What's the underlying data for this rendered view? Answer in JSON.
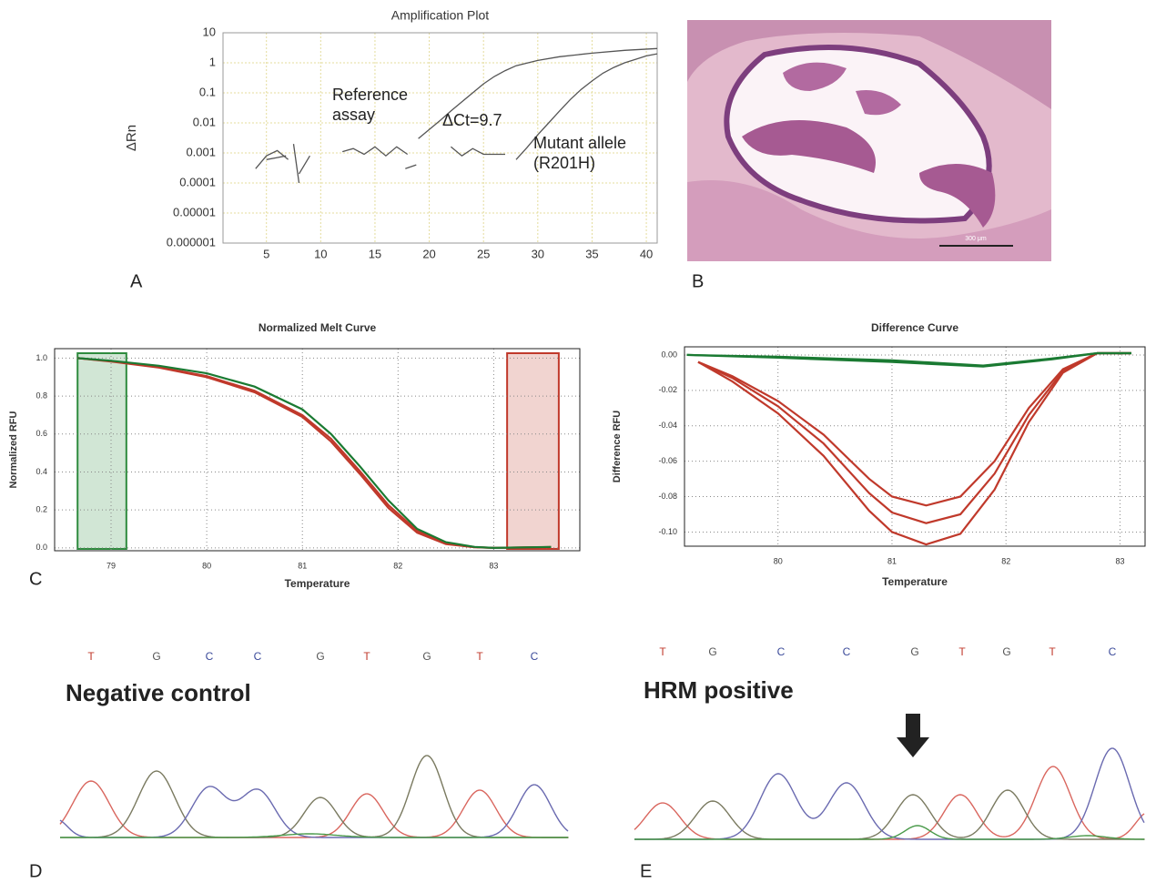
{
  "chart_data": [
    {
      "type": "line",
      "title": "Amplification Plot",
      "ylabel": "ΔRn",
      "log_y": true,
      "grid": true,
      "xlim": [
        1,
        41
      ],
      "xticks": [
        5,
        10,
        15,
        20,
        25,
        30,
        35,
        40
      ],
      "ylim": [
        1e-06,
        10
      ],
      "yticks": [
        10,
        1,
        0.1,
        0.01,
        0.001,
        0.0001,
        1e-05,
        1e-06
      ],
      "annotations": [
        "Reference assay",
        "ΔCt=9.7",
        "Mutant allele (R201H)"
      ],
      "series": [
        {
          "color": "#555555",
          "x": [
            4,
            5,
            6,
            7,
            7.3,
            8,
            9,
            9.5,
            12,
            13,
            14,
            15,
            16,
            17,
            18,
            18.5,
            19,
            20,
            21,
            22,
            23,
            24,
            25,
            26,
            27,
            28,
            30,
            32,
            35,
            38,
            41
          ],
          "values": [
            0.0003,
            0.0008,
            0.0012,
            0.0006,
            null,
            0.0002,
            0.0008,
            null,
            0.0011,
            0.0014,
            0.0009,
            0.0016,
            0.0008,
            0.0016,
            0.0009,
            null,
            0.003,
            0.006,
            0.012,
            0.025,
            0.05,
            0.1,
            0.2,
            0.35,
            0.55,
            0.8,
            1.2,
            1.6,
            2.1,
            2.6,
            3
          ]
        },
        {
          "color": "#555555",
          "x": [
            5,
            6,
            6.8,
            7,
            7.5,
            8,
            9,
            17.8,
            18.8,
            19,
            22,
            23,
            24,
            25,
            26,
            27,
            27.5,
            28,
            29,
            30,
            31,
            32,
            33,
            34,
            35,
            36,
            37,
            38,
            39,
            40,
            41
          ],
          "values": [
            0.0006,
            0.0007,
            0.0008,
            null,
            0.002,
            0.0001,
            null,
            0.0003,
            0.0004,
            null,
            0.0016,
            0.0008,
            0.0014,
            0.0009,
            0.0009,
            0.0009,
            null,
            0.0006,
            0.0015,
            0.004,
            0.01,
            0.025,
            0.06,
            0.13,
            0.25,
            0.45,
            0.7,
            1.0,
            1.3,
            1.7,
            2
          ]
        }
      ]
    },
    {
      "type": "line",
      "title": "Normalized Melt Curve",
      "xlabel": "Temperature",
      "ylabel": "Normalized RFU",
      "grid": true,
      "xlim": [
        78.41,
        83.9
      ],
      "xticks": [
        79,
        80,
        81,
        82,
        83
      ],
      "ylim": [
        -0.015,
        1.05
      ],
      "yticks": [
        {
          "value": 0,
          "label": "0.0"
        },
        {
          "value": 0.2,
          "label": "0.2"
        },
        {
          "value": 0.4,
          "label": "0.4"
        },
        {
          "value": 0.6,
          "label": "0.6"
        },
        {
          "value": 0.8,
          "label": "0.8"
        },
        {
          "value": 1,
          "label": "1.0"
        }
      ],
      "regions": [
        {
          "xlim": [
            78.65,
            79.16
          ],
          "color": "#2e8b3e"
        },
        {
          "xlim": [
            83.14,
            83.68
          ],
          "color": "#c0392b"
        }
      ],
      "series": [
        {
          "color": "#c0392b",
          "x": [
            78.65,
            79,
            79.5,
            80,
            80.5,
            81,
            81.3,
            81.6,
            81.9,
            82.2,
            82.5,
            82.8,
            83,
            83.6
          ],
          "values": [
            1.0,
            0.982,
            0.95,
            0.9,
            0.82,
            0.69,
            0.56,
            0.39,
            0.21,
            0.08,
            0.02,
            0.003,
            0,
            0.004
          ]
        },
        {
          "color": "#c0392b",
          "x": [
            78.65,
            79,
            79.5,
            80,
            80.5,
            81,
            81.3,
            81.6,
            81.9,
            82.2,
            82.5,
            82.8,
            83,
            83.6
          ],
          "values": [
            1.0,
            0.984,
            0.953,
            0.905,
            0.828,
            0.7,
            0.575,
            0.405,
            0.225,
            0.09,
            0.025,
            0.004,
            0,
            0.004
          ]
        },
        {
          "color": "#1a7a32",
          "x": [
            78.65,
            79,
            79.5,
            80,
            80.5,
            81,
            81.3,
            81.6,
            81.9,
            82.2,
            82.5,
            82.8,
            83,
            83.6
          ],
          "values": [
            1.0,
            0.986,
            0.96,
            0.92,
            0.85,
            0.73,
            0.6,
            0.43,
            0.25,
            0.1,
            0.03,
            0.005,
            0,
            0.005
          ]
        }
      ]
    },
    {
      "type": "line",
      "title": "Difference Curve",
      "xlabel": "Temperature",
      "ylabel": "Difference RFU",
      "grid": true,
      "xlim": [
        79.18,
        83.22
      ],
      "xticks": [
        80,
        81,
        82,
        83
      ],
      "ylim": [
        -0.108,
        0.0046
      ],
      "yticks": [
        {
          "value": 0,
          "label": "0.00"
        },
        {
          "value": -0.02,
          "label": "-0.02"
        },
        {
          "value": -0.04,
          "label": "-0.04"
        },
        {
          "value": -0.06,
          "label": "-0.06"
        },
        {
          "value": -0.08,
          "label": "-0.08"
        },
        {
          "value": -0.1,
          "label": "-0.10"
        }
      ],
      "series": [
        {
          "color": "#c0392b",
          "x": [
            79.3,
            79.6,
            80,
            80.4,
            80.8,
            81,
            81.3,
            81.6,
            81.9,
            82.2,
            82.5,
            82.8,
            83.1
          ],
          "values": [
            -0.004,
            -0.012,
            -0.026,
            -0.045,
            -0.07,
            -0.08,
            -0.085,
            -0.08,
            -0.06,
            -0.03,
            -0.008,
            0.001,
            0.001
          ]
        },
        {
          "color": "#c0392b",
          "x": [
            79.3,
            79.6,
            80,
            80.4,
            80.8,
            81,
            81.3,
            81.6,
            81.9,
            82.2,
            82.5,
            82.8,
            83.1
          ],
          "values": [
            -0.004,
            -0.013,
            -0.029,
            -0.05,
            -0.078,
            -0.089,
            -0.095,
            -0.09,
            -0.067,
            -0.034,
            -0.009,
            0.001,
            0.001
          ]
        },
        {
          "color": "#c0392b",
          "x": [
            79.3,
            79.6,
            80,
            80.4,
            80.8,
            81,
            81.3,
            81.6,
            81.9,
            82.2,
            82.5,
            82.8,
            83.1
          ],
          "values": [
            -0.004,
            -0.015,
            -0.033,
            -0.057,
            -0.088,
            -0.1,
            -0.107,
            -0.101,
            -0.076,
            -0.038,
            -0.01,
            0.001,
            0.001
          ]
        },
        {
          "color": "#1a7a32",
          "x": [
            79.2,
            80,
            81,
            81.8,
            82.4,
            82.8,
            83.1
          ],
          "values": [
            0,
            -0.001,
            -0.003,
            -0.006,
            -0.002,
            0.001,
            0.001
          ]
        },
        {
          "color": "#1a7a32",
          "x": [
            79.2,
            80,
            81,
            81.8,
            82.4,
            82.8,
            83.1
          ],
          "values": [
            0,
            -0.0015,
            -0.004,
            -0.0065,
            -0.0025,
            0.001,
            0.001
          ]
        }
      ]
    }
  ],
  "panel_labels": [
    "A",
    "B",
    "C",
    "D",
    "E"
  ],
  "histology": {
    "scale_bar": "300 μm"
  },
  "sequences": [
    {
      "title": "Negative control",
      "bases": [
        "T",
        "G",
        "C",
        "C",
        "G",
        "T",
        "G",
        "T",
        "C"
      ]
    },
    {
      "title": "HRM positive",
      "bases": [
        "T",
        "G",
        "C",
        "C",
        "G",
        "T",
        "G",
        "T",
        "C"
      ]
    }
  ]
}
